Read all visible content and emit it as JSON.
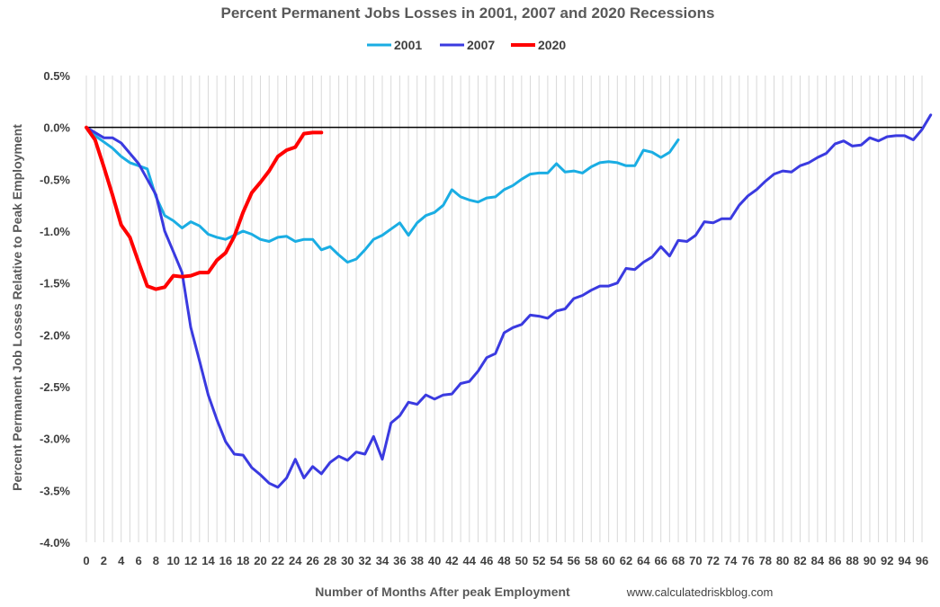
{
  "chart_data": {
    "type": "line",
    "title": "Percent Permanent Jobs Losses in 2001, 2007 and 2020 Recessions",
    "xlabel": "Number of Months After peak Employment",
    "ylabel": "Percent Permanent Job Losses Relative to Peak Employment",
    "source": "www.calculatedriskblog.com",
    "xlim": [
      0,
      96
    ],
    "ylim": [
      -4.0,
      0.5
    ],
    "x_ticks": [
      0,
      2,
      4,
      6,
      8,
      10,
      12,
      14,
      16,
      18,
      20,
      22,
      24,
      26,
      28,
      30,
      32,
      34,
      36,
      38,
      40,
      42,
      44,
      46,
      48,
      50,
      52,
      54,
      56,
      58,
      60,
      62,
      64,
      66,
      68,
      70,
      72,
      74,
      76,
      78,
      80,
      82,
      84,
      86,
      88,
      90,
      92,
      94,
      96
    ],
    "y_ticks": [
      0.5,
      0.0,
      -0.5,
      -1.0,
      -1.5,
      -2.0,
      -2.5,
      -3.0,
      -3.5,
      -4.0
    ],
    "y_tick_labels": [
      "0.5%",
      "0.0%",
      "-0.5%",
      "-1.0%",
      "-1.5%",
      "-2.0%",
      "-2.5%",
      "-3.0%",
      "-3.5%",
      "-4.0%"
    ],
    "grid": "vertical",
    "legend_position": "top",
    "series": [
      {
        "name": "2001",
        "color": "#1AADE3",
        "values": [
          0.0,
          -0.08,
          -0.14,
          -0.2,
          -0.28,
          -0.34,
          -0.37,
          -0.4,
          -0.67,
          -0.85,
          -0.9,
          -0.97,
          -0.91,
          -0.95,
          -1.03,
          -1.06,
          -1.08,
          -1.04,
          -1.0,
          -1.03,
          -1.08,
          -1.1,
          -1.06,
          -1.05,
          -1.1,
          -1.08,
          -1.08,
          -1.18,
          -1.15,
          -1.23,
          -1.3,
          -1.27,
          -1.18,
          -1.08,
          -1.04,
          -0.98,
          -0.92,
          -1.04,
          -0.92,
          -0.85,
          -0.82,
          -0.75,
          -0.6,
          -0.67,
          -0.7,
          -0.72,
          -0.68,
          -0.67,
          -0.6,
          -0.56,
          -0.5,
          -0.45,
          -0.44,
          -0.44,
          -0.35,
          -0.43,
          -0.42,
          -0.44,
          -0.38,
          -0.34,
          -0.33,
          -0.34,
          -0.37,
          -0.37,
          -0.22,
          -0.24,
          -0.29,
          -0.24,
          -0.12
        ]
      },
      {
        "name": "2007",
        "color": "#3A3AE0",
        "values": [
          0.0,
          -0.05,
          -0.1,
          -0.1,
          -0.15,
          -0.25,
          -0.35,
          -0.5,
          -0.65,
          -1.0,
          -1.2,
          -1.4,
          -1.93,
          -2.25,
          -2.58,
          -2.82,
          -3.03,
          -3.15,
          -3.16,
          -3.28,
          -3.35,
          -3.43,
          -3.47,
          -3.38,
          -3.2,
          -3.38,
          -3.27,
          -3.34,
          -3.23,
          -3.17,
          -3.21,
          -3.13,
          -3.15,
          -2.98,
          -3.2,
          -2.85,
          -2.78,
          -2.65,
          -2.67,
          -2.58,
          -2.62,
          -2.58,
          -2.57,
          -2.47,
          -2.45,
          -2.35,
          -2.22,
          -2.18,
          -1.98,
          -1.93,
          -1.9,
          -1.81,
          -1.82,
          -1.84,
          -1.77,
          -1.75,
          -1.65,
          -1.62,
          -1.57,
          -1.53,
          -1.53,
          -1.5,
          -1.36,
          -1.37,
          -1.3,
          -1.25,
          -1.15,
          -1.24,
          -1.09,
          -1.1,
          -1.04,
          -0.91,
          -0.92,
          -0.88,
          -0.88,
          -0.75,
          -0.66,
          -0.6,
          -0.52,
          -0.45,
          -0.42,
          -0.43,
          -0.37,
          -0.34,
          -0.29,
          -0.25,
          -0.16,
          -0.13,
          -0.18,
          -0.17,
          -0.1,
          -0.13,
          -0.09,
          -0.08,
          -0.08,
          -0.12,
          -0.02,
          0.12
        ]
      },
      {
        "name": "2020",
        "color": "#FF0000",
        "values": [
          0.0,
          -0.12,
          -0.38,
          -0.65,
          -0.94,
          -1.06,
          -1.3,
          -1.53,
          -1.56,
          -1.54,
          -1.43,
          -1.44,
          -1.43,
          -1.4,
          -1.4,
          -1.28,
          -1.21,
          -1.05,
          -0.82,
          -0.63,
          -0.53,
          -0.42,
          -0.28,
          -0.22,
          -0.19,
          -0.06,
          -0.05,
          -0.05
        ]
      }
    ]
  }
}
